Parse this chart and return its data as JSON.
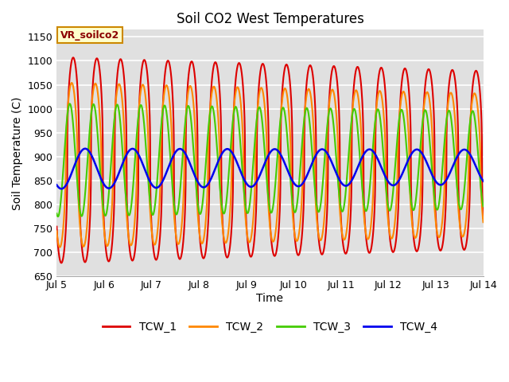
{
  "title": "Soil CO2 West Temperatures",
  "xlabel": "Time",
  "ylabel": "Soil Temperature (C)",
  "ylim": [
    650,
    1165
  ],
  "xlim_days": [
    5.0,
    14.0
  ],
  "annotation_text": "VR_soilco2",
  "annotation_bg": "#ffffcc",
  "annotation_border": "#cc8800",
  "bg_color": "#e0e0e0",
  "grid_color": "white",
  "colors": {
    "TCW_1": "#dd0000",
    "TCW_2": "#ff8800",
    "TCW_3": "#44cc00",
    "TCW_4": "#0000ee"
  },
  "x_tick_positions": [
    5,
    6,
    7,
    8,
    9,
    10,
    11,
    12,
    13,
    14
  ],
  "x_tick_labels": [
    "Jul 5",
    "Jul 6",
    "Jul 7",
    "Jul 8",
    "Jul 9",
    "Jul 10",
    "Jul 11",
    "Jul 12",
    "Jul 13",
    "Jul 14"
  ],
  "y_ticks": [
    650,
    700,
    750,
    800,
    850,
    900,
    950,
    1000,
    1050,
    1100,
    1150
  ],
  "tcw1": {
    "base": 893,
    "amp": 215,
    "period": 0.5,
    "phase": -2.8,
    "trend": 0.0,
    "sharpness": 2.5
  },
  "tcw2": {
    "base": 883,
    "amp": 172,
    "period": 0.5,
    "phase": -2.4,
    "trend": 0.0,
    "sharpness": 1.8
  },
  "tcw3": {
    "base": 893,
    "amp": 118,
    "period": 0.5,
    "phase": -1.9,
    "trend": 0.0,
    "sharpness": 1.0
  },
  "tcw4": {
    "base": 875,
    "amp": 42,
    "period": 1.0,
    "phase": -2.2,
    "trend": 3.5,
    "sharpness": 1.0
  }
}
